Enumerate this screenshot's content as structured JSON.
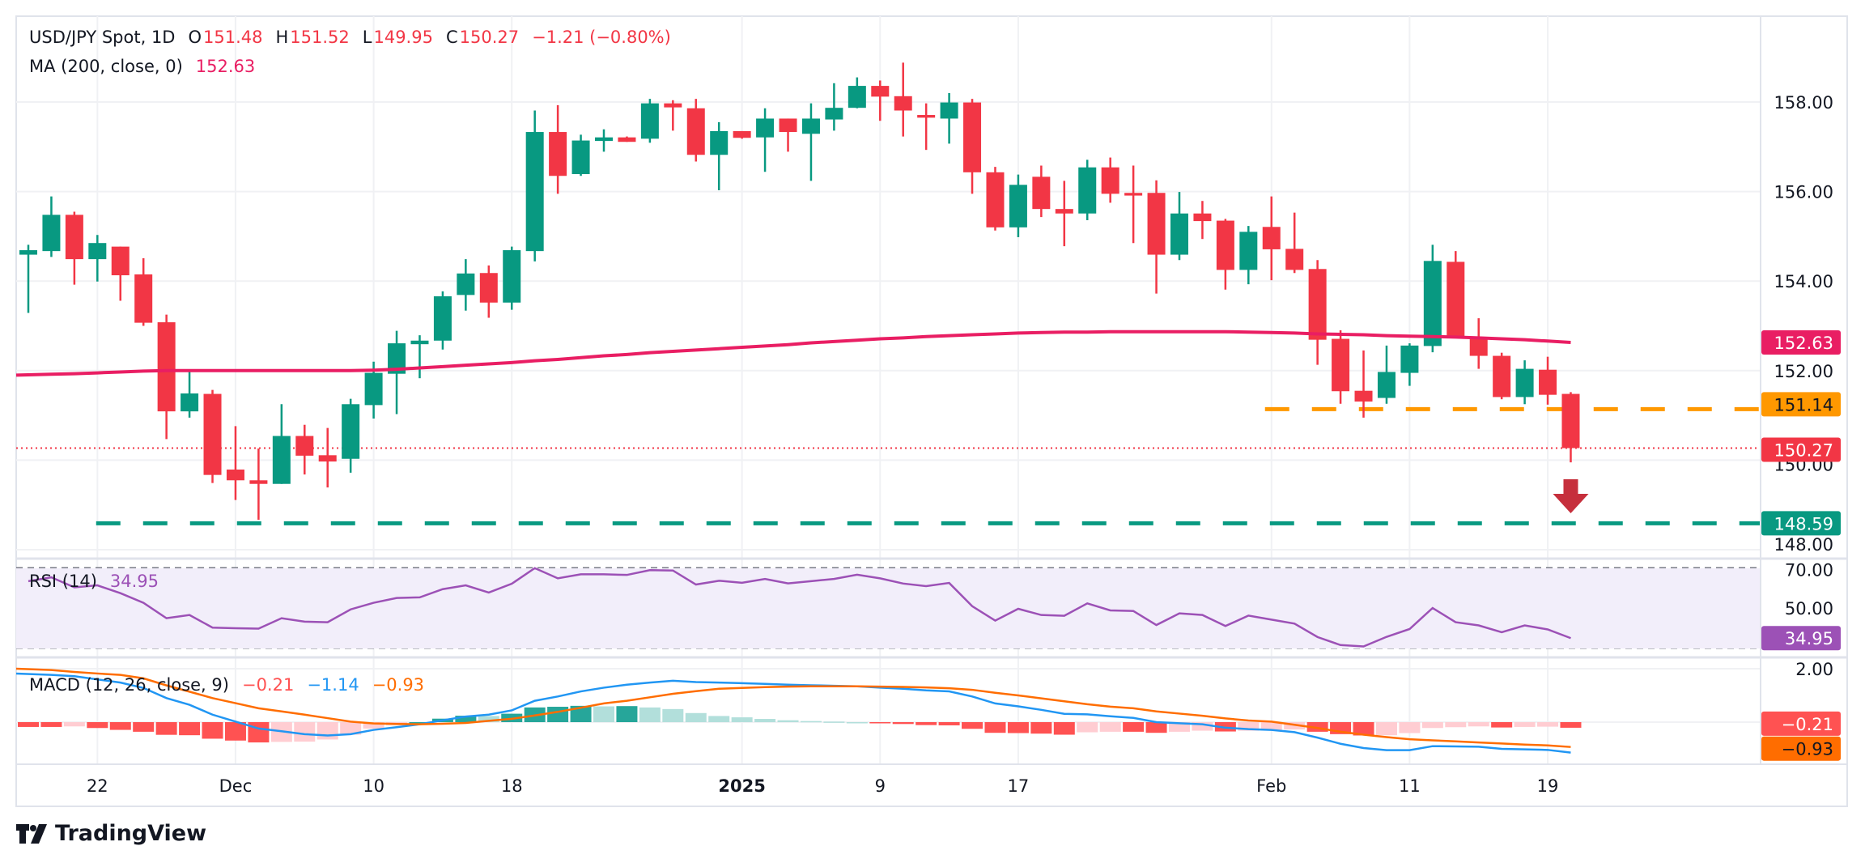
{
  "header": {
    "symbol": "USD/JPY Spot, 1D",
    "o_label": "O",
    "open": "151.48",
    "h_label": "H",
    "high": "151.52",
    "l_label": "L",
    "low": "149.95",
    "c_label": "C",
    "close": "150.27",
    "change": "−1.21 (−0.80%)",
    "ma_label": "MA (200, close, 0)",
    "ma_value": "152.63"
  },
  "rsi_header": {
    "label": "RSI (14)",
    "value": "34.95"
  },
  "macd_header": {
    "label": "MACD (12, 26, close, 9)",
    "hist": "−0.21",
    "macd": "−1.14",
    "signal": "−0.93"
  },
  "branding": {
    "logo_text": "TradingView"
  },
  "colors": {
    "up": "#089981",
    "down": "#f23645",
    "ma": "#e91e63",
    "support_orange": "#ff9800",
    "support_green": "#089981",
    "rsi": "#9c51b6",
    "rsi_band": "#f2eefa",
    "macd": "#2196f3",
    "signal": "#ff6d00",
    "hist_up_strong": "#26a69a",
    "hist_up_weak": "#b2dfdb",
    "hist_down_strong": "#ff5252",
    "hist_down_weak": "#ffcdd2",
    "arrow": "#c62f3c"
  },
  "chart_data": {
    "type": "candlestick",
    "price_axis": {
      "ticks": [
        "158.00",
        "156.00",
        "154.00",
        "152.00",
        "150.00",
        "148.00"
      ],
      "range": [
        148,
        158
      ]
    },
    "date_ticks": [
      {
        "date": "2024-11-22",
        "label": "22",
        "bold": false
      },
      {
        "date": "2024-12-02",
        "label": "Dec",
        "bold": false
      },
      {
        "date": "2024-12-10",
        "label": "10",
        "bold": false
      },
      {
        "date": "2024-12-18",
        "label": "18",
        "bold": false
      },
      {
        "date": "2025-01-01",
        "label": "2025",
        "bold": true
      },
      {
        "date": "2025-01-09",
        "label": "9",
        "bold": false
      },
      {
        "date": "2025-01-17",
        "label": "17",
        "bold": false
      },
      {
        "date": "2025-02-03",
        "label": "Feb",
        "bold": false
      },
      {
        "date": "2025-02-11",
        "label": "11",
        "bold": false
      },
      {
        "date": "2025-02-19",
        "label": "19",
        "bold": false
      }
    ],
    "candles_columns": [
      "date",
      "open",
      "high",
      "low",
      "close"
    ],
    "candles": [
      [
        "2024-11-19",
        154.59,
        154.81,
        153.29,
        154.69
      ],
      [
        "2024-11-20",
        154.67,
        155.89,
        154.54,
        155.48
      ],
      [
        "2024-11-21",
        155.48,
        155.55,
        153.92,
        154.49
      ],
      [
        "2024-11-22",
        154.49,
        155.03,
        153.99,
        154.85
      ],
      [
        "2024-11-25",
        154.77,
        154.77,
        153.56,
        154.13
      ],
      [
        "2024-11-26",
        154.15,
        154.51,
        153.0,
        153.07
      ],
      [
        "2024-11-27",
        153.08,
        153.25,
        150.47,
        151.09
      ],
      [
        "2024-11-28",
        151.09,
        151.97,
        150.95,
        151.49
      ],
      [
        "2024-11-29",
        151.48,
        151.57,
        149.49,
        149.67
      ],
      [
        "2024-12-02",
        149.79,
        150.76,
        149.11,
        149.55
      ],
      [
        "2024-12-03",
        149.55,
        150.26,
        148.67,
        149.47
      ],
      [
        "2024-12-04",
        149.47,
        151.25,
        149.47,
        150.54
      ],
      [
        "2024-12-05",
        150.54,
        150.79,
        149.68,
        150.1
      ],
      [
        "2024-12-06",
        150.11,
        150.72,
        149.39,
        149.97
      ],
      [
        "2024-12-09",
        150.03,
        151.37,
        149.72,
        151.25
      ],
      [
        "2024-12-10",
        151.23,
        152.2,
        150.93,
        151.95
      ],
      [
        "2024-12-11",
        151.93,
        152.89,
        151.03,
        152.61
      ],
      [
        "2024-12-12",
        152.59,
        152.79,
        151.83,
        152.67
      ],
      [
        "2024-12-13",
        152.67,
        153.77,
        152.47,
        153.66
      ],
      [
        "2024-12-16",
        153.69,
        154.49,
        153.34,
        154.17
      ],
      [
        "2024-12-17",
        154.18,
        154.35,
        153.18,
        153.52
      ],
      [
        "2024-12-18",
        153.52,
        154.77,
        153.36,
        154.69
      ],
      [
        "2024-12-19",
        154.67,
        157.81,
        154.44,
        157.33
      ],
      [
        "2024-12-20",
        157.33,
        157.93,
        155.95,
        156.35
      ],
      [
        "2024-12-23",
        156.39,
        157.27,
        156.35,
        157.14
      ],
      [
        "2024-12-24",
        157.13,
        157.39,
        156.89,
        157.21
      ],
      [
        "2024-12-25",
        157.21,
        157.23,
        157.11,
        157.11
      ],
      [
        "2024-12-26",
        157.18,
        158.07,
        157.09,
        157.97
      ],
      [
        "2024-12-27",
        157.97,
        158.04,
        157.36,
        157.88
      ],
      [
        "2024-12-30",
        157.86,
        158.07,
        156.67,
        156.82
      ],
      [
        "2024-12-31",
        156.82,
        157.55,
        156.03,
        157.35
      ],
      [
        "2025-01-01",
        157.35,
        157.35,
        157.18,
        157.2
      ],
      [
        "2025-01-02",
        157.21,
        157.86,
        156.44,
        157.63
      ],
      [
        "2025-01-03",
        157.63,
        157.63,
        156.89,
        157.33
      ],
      [
        "2025-01-06",
        157.29,
        157.97,
        156.24,
        157.63
      ],
      [
        "2025-01-07",
        157.61,
        158.42,
        157.36,
        157.87
      ],
      [
        "2025-01-08",
        157.87,
        158.55,
        157.86,
        158.36
      ],
      [
        "2025-01-09",
        158.36,
        158.48,
        157.58,
        158.12
      ],
      [
        "2025-01-10",
        158.13,
        158.88,
        157.23,
        157.81
      ],
      [
        "2025-01-13",
        157.71,
        157.97,
        156.93,
        157.65
      ],
      [
        "2025-01-14",
        157.63,
        158.2,
        157.07,
        157.99
      ],
      [
        "2025-01-15",
        157.99,
        158.07,
        155.95,
        156.43
      ],
      [
        "2025-01-16",
        156.43,
        156.55,
        155.13,
        155.2
      ],
      [
        "2025-01-17",
        155.2,
        156.38,
        154.98,
        156.15
      ],
      [
        "2025-01-20",
        156.33,
        156.58,
        155.43,
        155.61
      ],
      [
        "2025-01-21",
        155.61,
        156.24,
        154.78,
        155.51
      ],
      [
        "2025-01-22",
        155.51,
        156.71,
        155.36,
        156.54
      ],
      [
        "2025-01-23",
        156.54,
        156.76,
        155.75,
        155.95
      ],
      [
        "2025-01-24",
        155.97,
        156.58,
        154.85,
        155.91
      ],
      [
        "2025-01-27",
        155.97,
        156.25,
        153.72,
        154.59
      ],
      [
        "2025-01-28",
        154.59,
        155.99,
        154.47,
        155.51
      ],
      [
        "2025-01-29",
        155.51,
        155.79,
        154.94,
        155.34
      ],
      [
        "2025-01-30",
        155.35,
        155.39,
        153.81,
        154.25
      ],
      [
        "2025-01-31",
        154.25,
        155.23,
        153.93,
        155.1
      ],
      [
        "2025-02-03",
        155.21,
        155.89,
        154.02,
        154.71
      ],
      [
        "2025-02-04",
        154.72,
        155.53,
        154.18,
        154.25
      ],
      [
        "2025-02-05",
        154.27,
        154.47,
        152.13,
        152.69
      ],
      [
        "2025-02-06",
        152.71,
        152.9,
        151.26,
        151.54
      ],
      [
        "2025-02-07",
        151.55,
        152.45,
        150.95,
        151.31
      ],
      [
        "2025-02-10",
        151.39,
        152.56,
        151.26,
        151.97
      ],
      [
        "2025-02-11",
        151.95,
        152.61,
        151.66,
        152.56
      ],
      [
        "2025-02-12",
        152.55,
        154.81,
        152.41,
        154.45
      ],
      [
        "2025-02-13",
        154.43,
        154.67,
        152.72,
        152.74
      ],
      [
        "2025-02-14",
        152.75,
        153.17,
        152.04,
        152.33
      ],
      [
        "2025-02-17",
        152.33,
        152.4,
        151.36,
        151.41
      ],
      [
        "2025-02-18",
        151.41,
        152.23,
        151.25,
        152.04
      ],
      [
        "2025-02-19",
        152.02,
        152.31,
        151.24,
        151.46
      ],
      [
        "2025-02-20",
        151.48,
        151.52,
        149.95,
        150.27
      ]
    ],
    "ma200": [
      151.9,
      151.92,
      151.93,
      151.95,
      151.97,
      151.99,
      152.0,
      152.0,
      152.0,
      152.0,
      152.0,
      152.0,
      152.0,
      152.0,
      152.0,
      152.01,
      152.03,
      152.06,
      152.09,
      152.12,
      152.15,
      152.18,
      152.22,
      152.25,
      152.29,
      152.33,
      152.36,
      152.4,
      152.43,
      152.46,
      152.49,
      152.52,
      152.55,
      152.58,
      152.62,
      152.65,
      152.68,
      152.71,
      152.73,
      152.76,
      152.78,
      152.8,
      152.82,
      152.84,
      152.85,
      152.86,
      152.86,
      152.87,
      152.87,
      152.87,
      152.87,
      152.87,
      152.87,
      152.86,
      152.85,
      152.84,
      152.82,
      152.81,
      152.8,
      152.78,
      152.77,
      152.76,
      152.75,
      152.73,
      152.71,
      152.69,
      152.66,
      152.63
    ],
    "levels": [
      {
        "value": 151.14,
        "label": "151.14",
        "style": "dashed-orange",
        "from_date": "2025-02-01"
      },
      {
        "value": 148.59,
        "label": "148.59",
        "style": "dashed-green",
        "from_date": "2024-11-25"
      },
      {
        "value": 150.27,
        "label": "150.27",
        "style": "dotted-red-last-price"
      }
    ],
    "ma_label": "152.63",
    "annotation": {
      "type": "down-arrow",
      "date": "2025-02-20"
    },
    "rsi": {
      "ticks": [
        "70.00",
        "50.00"
      ],
      "band": [
        30,
        70
      ],
      "midline": 50,
      "last_label": "34.95",
      "values": [
        63.4,
        65.3,
        60.3,
        61.3,
        57.4,
        52.6,
        44.9,
        46.5,
        40.2,
        39.9,
        39.7,
        44.9,
        43.2,
        42.9,
        49.3,
        52.6,
        55.0,
        55.3,
        59.4,
        61.3,
        57.7,
        62.1,
        69.9,
        64.8,
        66.8,
        66.8,
        66.5,
        68.9,
        68.7,
        61.7,
        63.6,
        62.6,
        64.5,
        62.3,
        63.4,
        64.5,
        66.6,
        64.8,
        62.2,
        60.9,
        62.5,
        50.9,
        43.7,
        49.6,
        46.5,
        46.1,
        52.3,
        48.8,
        48.5,
        41.5,
        47.3,
        46.5,
        41.0,
        46.2,
        44.2,
        42.2,
        35.5,
        31.5,
        30.8,
        35.6,
        39.5,
        50.0,
        42.9,
        41.3,
        37.9,
        41.3,
        39.3,
        34.95
      ]
    },
    "macd": {
      "ticks": [
        "2.00"
      ],
      "hist_label": "−0.21",
      "signal_label": "−0.93",
      "macd": [
        1.82,
        1.77,
        1.72,
        1.6,
        1.48,
        1.28,
        0.9,
        0.65,
        0.28,
        0.02,
        -0.24,
        -0.34,
        -0.45,
        -0.5,
        -0.45,
        -0.29,
        -0.19,
        -0.08,
        0.07,
        0.21,
        0.28,
        0.44,
        0.8,
        0.96,
        1.15,
        1.29,
        1.4,
        1.48,
        1.55,
        1.5,
        1.48,
        1.46,
        1.43,
        1.4,
        1.38,
        1.36,
        1.34,
        1.29,
        1.25,
        1.19,
        1.15,
        0.96,
        0.7,
        0.59,
        0.46,
        0.31,
        0.29,
        0.22,
        0.16,
        0.0,
        -0.04,
        -0.08,
        -0.21,
        -0.26,
        -0.29,
        -0.375,
        -0.58,
        -0.81,
        -0.97,
        -1.05,
        -1.05,
        -0.9,
        -0.91,
        -0.92,
        -1.0,
        -1.02,
        -1.04,
        -1.14
      ],
      "signal": [
        2.0,
        1.95,
        1.88,
        1.82,
        1.77,
        1.64,
        1.375,
        1.14,
        0.9,
        0.71,
        0.52,
        0.4,
        0.28,
        0.15,
        0.02,
        -0.05,
        -0.07,
        -0.08,
        -0.06,
        -0.03,
        0.05,
        0.125,
        0.25,
        0.385,
        0.54,
        0.7,
        0.8,
        0.93,
        1.06,
        1.16,
        1.25,
        1.28,
        1.31,
        1.33,
        1.34,
        1.34,
        1.34,
        1.33,
        1.32,
        1.3,
        1.27,
        1.21,
        1.1,
        1.0,
        0.89,
        0.78,
        0.67,
        0.58,
        0.52,
        0.4,
        0.32,
        0.24,
        0.14,
        0.06,
        0.02,
        -0.1,
        -0.22,
        -0.36,
        -0.47,
        -0.56,
        -0.64,
        -0.68,
        -0.72,
        -0.76,
        -0.8,
        -0.84,
        -0.87,
        -0.93
      ]
    }
  }
}
